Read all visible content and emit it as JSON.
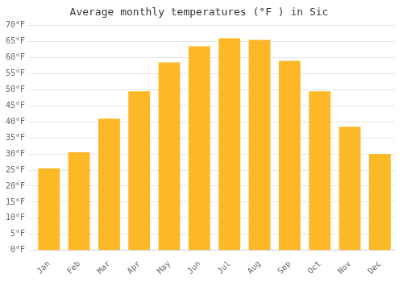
{
  "chart_data": {
    "type": "bar",
    "title": "Average monthly temperatures (°F ) in Sic",
    "categories": [
      "Jan",
      "Feb",
      "Mar",
      "Apr",
      "May",
      "Jun",
      "Jul",
      "Aug",
      "Sep",
      "Oct",
      "Nov",
      "Dec"
    ],
    "values": [
      25.5,
      30.5,
      41.0,
      49.5,
      58.5,
      63.5,
      66.0,
      65.5,
      59.0,
      49.5,
      38.5,
      30.0
    ],
    "color": "#FDB827",
    "ylim": [
      0,
      70
    ],
    "yticks": [
      {
        "value": 0,
        "label": "0°F"
      },
      {
        "value": 5,
        "label": "5°F"
      },
      {
        "value": 10,
        "label": "10°F"
      },
      {
        "value": 15,
        "label": "15°F"
      },
      {
        "value": 20,
        "label": "20°F"
      },
      {
        "value": 25,
        "label": "25°F"
      },
      {
        "value": 30,
        "label": "30°F"
      },
      {
        "value": 35,
        "label": "35°F"
      },
      {
        "value": 40,
        "label": "40°F"
      },
      {
        "value": 45,
        "label": "45°F"
      },
      {
        "value": 50,
        "label": "50°F"
      },
      {
        "value": 55,
        "label": "55°F"
      },
      {
        "value": 60,
        "label": "60°F"
      },
      {
        "value": 65,
        "label": "65°F"
      },
      {
        "value": 70,
        "label": "70°F"
      }
    ],
    "grid": true
  }
}
